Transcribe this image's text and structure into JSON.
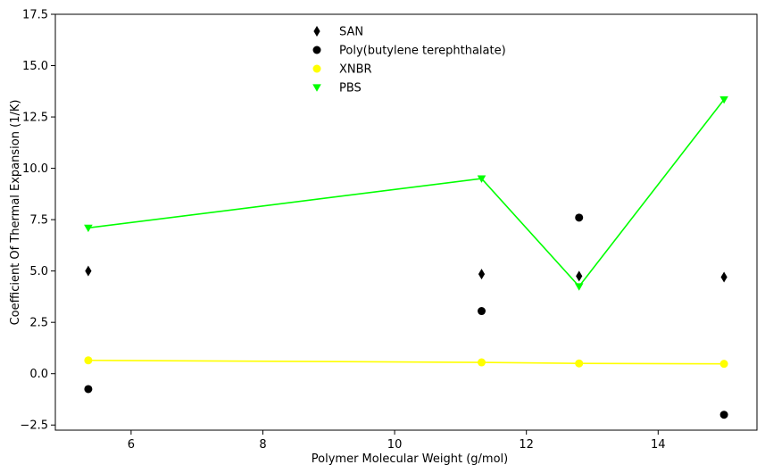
{
  "chart_data": {
    "type": "scatter",
    "title": "",
    "xlabel": "Polymer Molecular Weight (g/mol)",
    "ylabel": "Coefficient Of Thermal Expansion (1/K)",
    "xlim": [
      4.85,
      15.5
    ],
    "ylim": [
      -2.75,
      17.5
    ],
    "xticks": [
      6,
      8,
      10,
      12,
      14
    ],
    "yticks": [
      -2.5,
      0.0,
      2.5,
      5.0,
      7.5,
      10.0,
      12.5,
      15.0,
      17.5
    ],
    "ytick_labels": [
      "−2.5",
      "0.0",
      "2.5",
      "5.0",
      "7.5",
      "10.0",
      "12.5",
      "15.0",
      "17.5"
    ],
    "grid": false,
    "legend_position": "top-center",
    "series": [
      {
        "name": "SAN",
        "marker": "thin-diamond",
        "color": "#000000",
        "line": false,
        "x": [
          5.35,
          11.32,
          12.8,
          15.0
        ],
        "y": [
          5.0,
          4.85,
          4.75,
          4.7
        ]
      },
      {
        "name": "Poly(butylene terephthalate)",
        "marker": "circle",
        "color": "#000000",
        "line": false,
        "x": [
          5.35,
          11.32,
          12.8,
          15.0
        ],
        "y": [
          -0.75,
          3.05,
          7.6,
          -2.0
        ]
      },
      {
        "name": "XNBR",
        "marker": "circle",
        "color": "#ffff00",
        "line": true,
        "x": [
          5.35,
          11.32,
          12.8,
          15.0
        ],
        "y": [
          0.65,
          0.55,
          0.5,
          0.48
        ]
      },
      {
        "name": "PBS",
        "marker": "triangle-down",
        "color": "#00ff00",
        "line": true,
        "x": [
          5.35,
          11.32,
          12.8,
          15.0
        ],
        "y": [
          7.1,
          9.5,
          4.25,
          13.35
        ]
      }
    ]
  }
}
